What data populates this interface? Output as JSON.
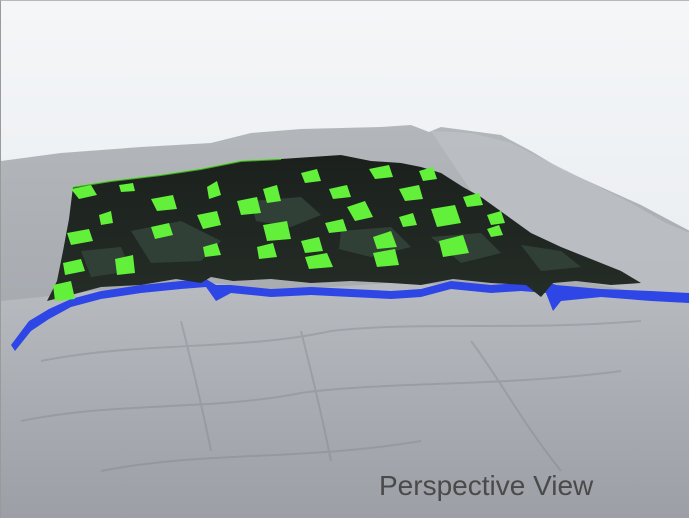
{
  "caption": "Perspective View",
  "colors": {
    "sky_top": "#f2f4f6",
    "sky_bottom": "#e4e8ec",
    "terrain_light": "#b9bcc1",
    "terrain_mid": "#a7aab0",
    "terrain_dark": "#8e9197",
    "canopy_dark": "#1e241f",
    "canopy_mid": "#2e3a31",
    "gap_green": "#62f03a",
    "water_blue": "#2e46e6",
    "caption_text": "#4a4a4a"
  }
}
